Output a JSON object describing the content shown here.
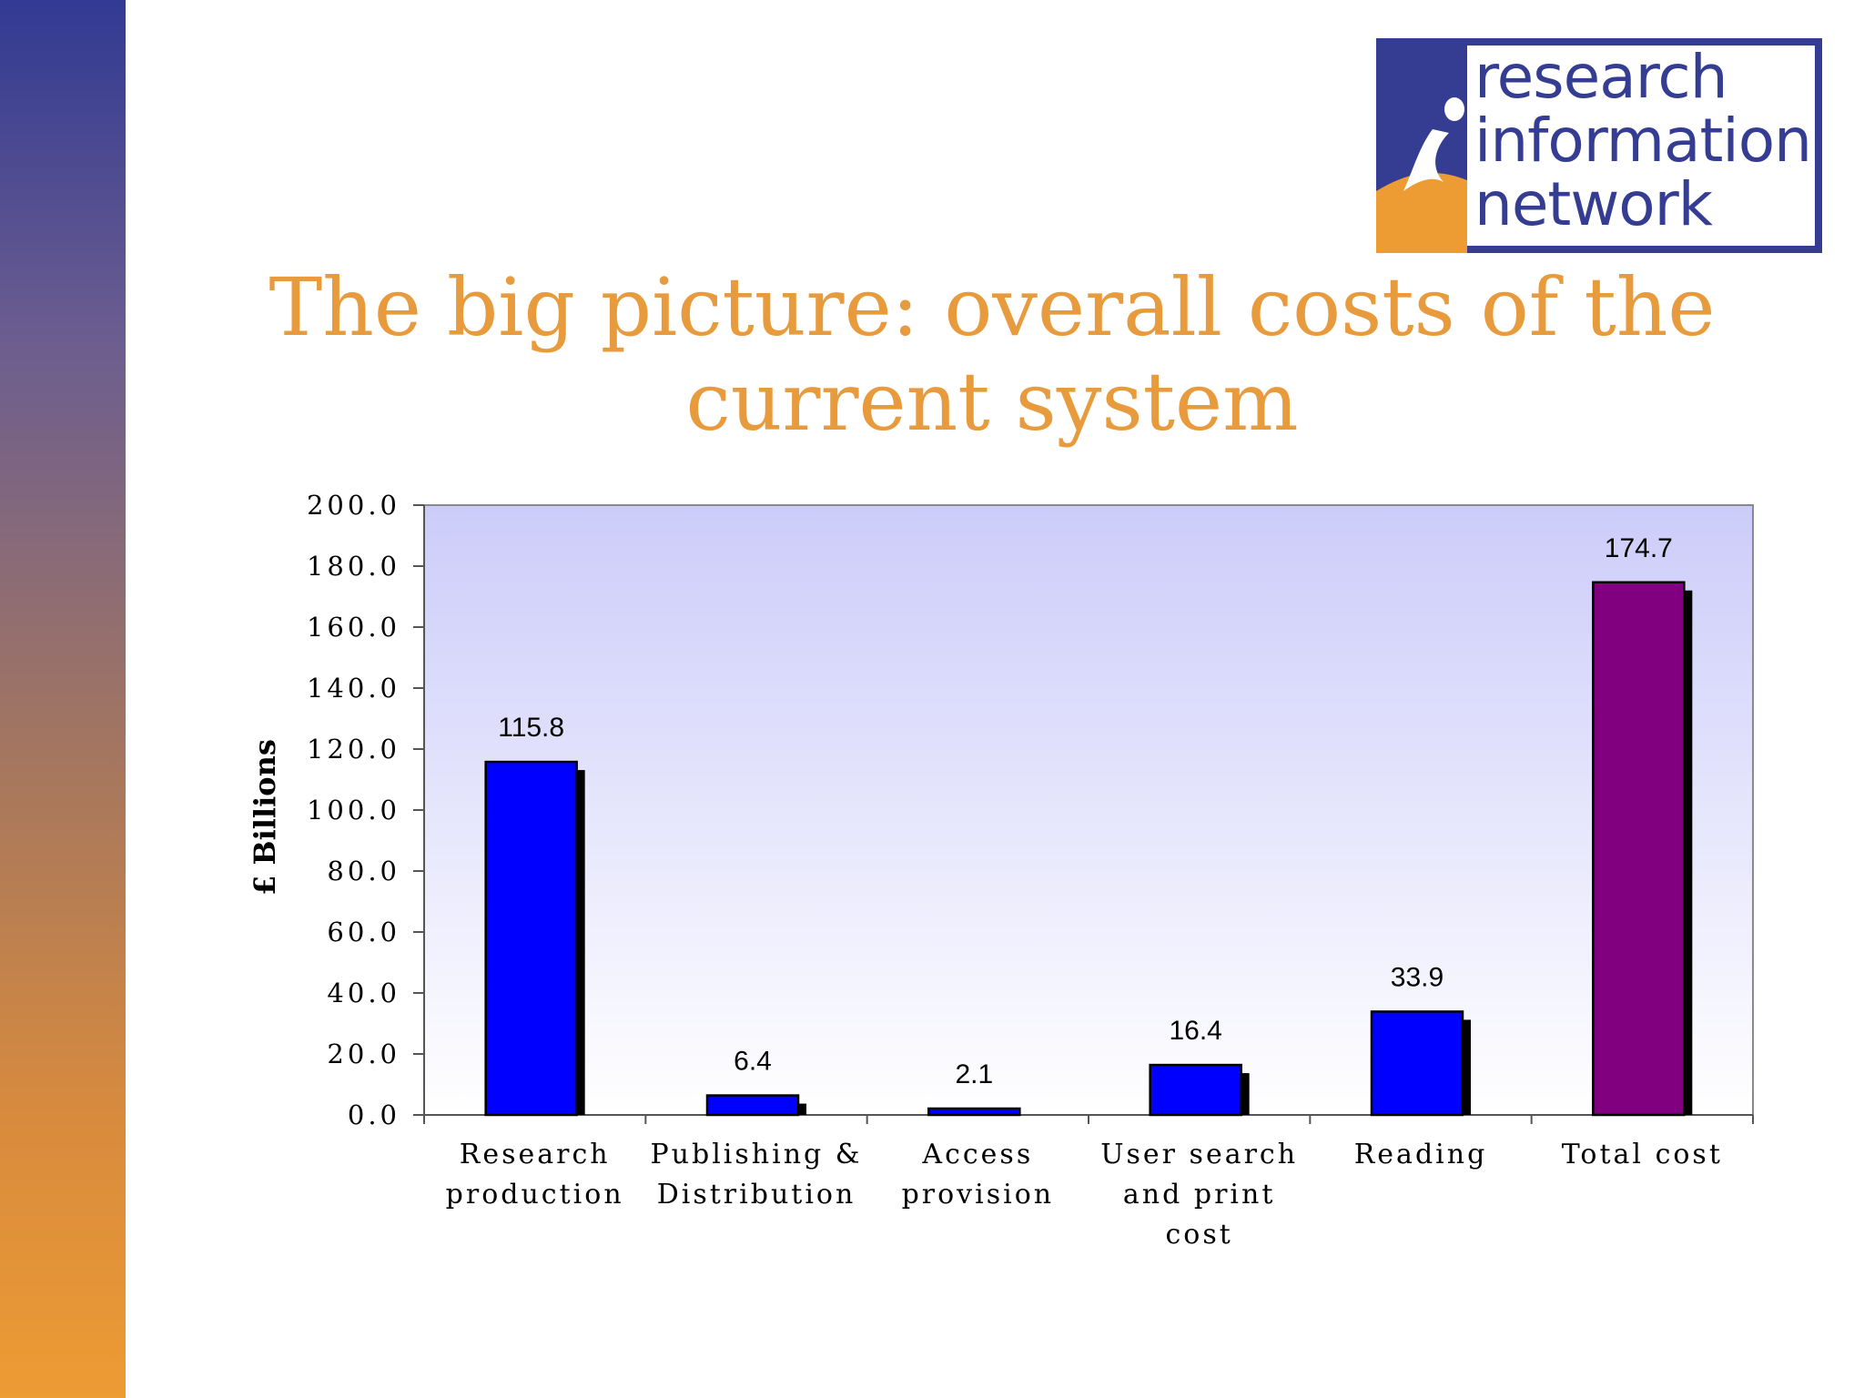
{
  "slide": {
    "title_line1": "The big picture: overall costs of the",
    "title_line2": "current system"
  },
  "logo": {
    "line1": "research",
    "line2": "information",
    "line3": "network",
    "colors": {
      "blue": "#353d92",
      "orange": "#ed9b33"
    }
  },
  "chart_data": {
    "type": "bar",
    "categories": [
      [
        "Research",
        "production"
      ],
      [
        "Publishing &",
        "Distribution"
      ],
      [
        "Access",
        "provision"
      ],
      [
        "User search",
        "and print",
        "cost"
      ],
      [
        "Reading"
      ],
      [
        "Total cost"
      ]
    ],
    "values": [
      115.8,
      6.4,
      2.1,
      16.4,
      33.9,
      174.7
    ],
    "data_labels": [
      "115.8",
      "6.4",
      "2.1",
      "16.4",
      "33.9",
      "174.7"
    ],
    "bar_colors": [
      "#0000ff",
      "#0000ff",
      "#0000ff",
      "#0000ff",
      "#0000ff",
      "#800080"
    ],
    "ylabel": "£ Billions",
    "ylim": [
      0,
      200
    ],
    "yticks": [
      "0.0",
      "20.0",
      "40.0",
      "60.0",
      "80.0",
      "100.0",
      "120.0",
      "140.0",
      "160.0",
      "180.0",
      "200.0"
    ],
    "ytick_values": [
      0,
      20,
      40,
      60,
      80,
      100,
      120,
      140,
      160,
      180,
      200
    ],
    "grid": false,
    "plot_background": {
      "top": "#ccccfa",
      "bottom": "#ffffff"
    }
  }
}
